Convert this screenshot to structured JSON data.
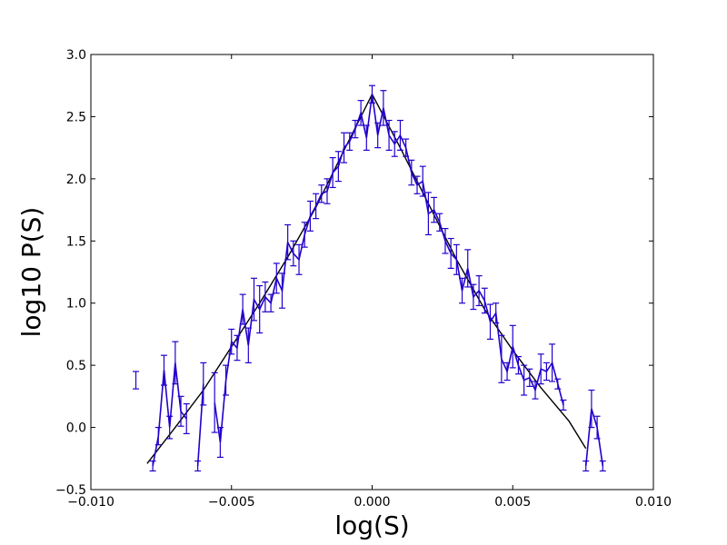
{
  "chart_data": {
    "type": "line",
    "title": "",
    "xlabel": "log(S)",
    "ylabel": "log10 P(S)",
    "xlim": [
      -0.01,
      0.01
    ],
    "ylim": [
      -0.5,
      3.0
    ],
    "x_ticks": [
      "−0.010",
      "−0.005",
      "0.000",
      "0.005",
      "0.010"
    ],
    "x_tick_values": [
      -0.01,
      -0.005,
      0.0,
      0.005,
      0.01
    ],
    "y_ticks": [
      "−0.5",
      "0.0",
      "0.5",
      "1.0",
      "1.5",
      "2.0",
      "2.5",
      "3.0"
    ],
    "y_tick_values": [
      -0.5,
      0.0,
      0.5,
      1.0,
      1.5,
      2.0,
      2.5,
      3.0
    ],
    "grid": false,
    "legend": "none",
    "colors": {
      "data": "#2200cc",
      "fit": "#000000"
    },
    "series": [
      {
        "style": "errorbar",
        "points": [
          {
            "x": -0.0084,
            "y": 0.38,
            "err": 0.07
          },
          {
            "x": -0.0078,
            "y": -0.31,
            "err": 0.04
          },
          {
            "x": -0.0076,
            "y": -0.07,
            "err": 0.07
          },
          {
            "x": -0.0074,
            "y": 0.46,
            "err": 0.12
          },
          {
            "x": -0.0072,
            "y": 0.0,
            "err": 0.09
          },
          {
            "x": -0.007,
            "y": 0.52,
            "err": 0.17
          },
          {
            "x": -0.0068,
            "y": 0.13,
            "err": 0.12
          },
          {
            "x": -0.0066,
            "y": 0.07,
            "err": 0.12
          },
          {
            "x": -0.0062,
            "y": -0.31,
            "err": 0.04
          },
          {
            "x": -0.006,
            "y": 0.35,
            "err": 0.17
          },
          {
            "x": -0.0056,
            "y": 0.2,
            "err": 0.24
          },
          {
            "x": -0.0054,
            "y": -0.12,
            "err": 0.12
          },
          {
            "x": -0.0052,
            "y": 0.38,
            "err": 0.12
          },
          {
            "x": -0.005,
            "y": 0.69,
            "err": 0.1
          },
          {
            "x": -0.0048,
            "y": 0.64,
            "err": 0.1
          },
          {
            "x": -0.0046,
            "y": 0.95,
            "err": 0.12
          },
          {
            "x": -0.0044,
            "y": 0.66,
            "err": 0.14
          },
          {
            "x": -0.0042,
            "y": 1.03,
            "err": 0.17
          },
          {
            "x": -0.004,
            "y": 0.95,
            "err": 0.19
          },
          {
            "x": -0.0038,
            "y": 1.05,
            "err": 0.12
          },
          {
            "x": -0.0036,
            "y": 1.0,
            "err": 0.07
          },
          {
            "x": -0.0034,
            "y": 1.2,
            "err": 0.12
          },
          {
            "x": -0.0032,
            "y": 1.1,
            "err": 0.14
          },
          {
            "x": -0.003,
            "y": 1.49,
            "err": 0.14
          },
          {
            "x": -0.0028,
            "y": 1.4,
            "err": 0.1
          },
          {
            "x": -0.0026,
            "y": 1.35,
            "err": 0.12
          },
          {
            "x": -0.0024,
            "y": 1.55,
            "err": 0.1
          },
          {
            "x": -0.0022,
            "y": 1.7,
            "err": 0.12
          },
          {
            "x": -0.002,
            "y": 1.78,
            "err": 0.1
          },
          {
            "x": -0.0018,
            "y": 1.88,
            "err": 0.07
          },
          {
            "x": -0.0016,
            "y": 1.9,
            "err": 0.1
          },
          {
            "x": -0.0014,
            "y": 2.05,
            "err": 0.12
          },
          {
            "x": -0.0012,
            "y": 2.1,
            "err": 0.12
          },
          {
            "x": -0.001,
            "y": 2.25,
            "err": 0.12
          },
          {
            "x": -0.0008,
            "y": 2.3,
            "err": 0.07
          },
          {
            "x": -0.0006,
            "y": 2.4,
            "err": 0.07
          },
          {
            "x": -0.0004,
            "y": 2.53,
            "err": 0.1
          },
          {
            "x": -0.0002,
            "y": 2.33,
            "err": 0.1
          },
          {
            "x": 0.0,
            "y": 2.68,
            "err": 0.07
          },
          {
            "x": 0.0002,
            "y": 2.35,
            "err": 0.1
          },
          {
            "x": 0.0004,
            "y": 2.57,
            "err": 0.14
          },
          {
            "x": 0.0006,
            "y": 2.35,
            "err": 0.12
          },
          {
            "x": 0.0008,
            "y": 2.28,
            "err": 0.1
          },
          {
            "x": 0.001,
            "y": 2.35,
            "err": 0.12
          },
          {
            "x": 0.0012,
            "y": 2.25,
            "err": 0.07
          },
          {
            "x": 0.0014,
            "y": 2.05,
            "err": 0.1
          },
          {
            "x": 0.0016,
            "y": 1.95,
            "err": 0.07
          },
          {
            "x": 0.0018,
            "y": 1.98,
            "err": 0.12
          },
          {
            "x": 0.002,
            "y": 1.72,
            "err": 0.17
          },
          {
            "x": 0.0022,
            "y": 1.75,
            "err": 0.1
          },
          {
            "x": 0.0024,
            "y": 1.65,
            "err": 0.07
          },
          {
            "x": 0.0026,
            "y": 1.5,
            "err": 0.1
          },
          {
            "x": 0.0028,
            "y": 1.4,
            "err": 0.12
          },
          {
            "x": 0.003,
            "y": 1.35,
            "err": 0.12
          },
          {
            "x": 0.0032,
            "y": 1.1,
            "err": 0.1
          },
          {
            "x": 0.0034,
            "y": 1.28,
            "err": 0.15
          },
          {
            "x": 0.0036,
            "y": 1.05,
            "err": 0.1
          },
          {
            "x": 0.0038,
            "y": 1.1,
            "err": 0.12
          },
          {
            "x": 0.004,
            "y": 1.02,
            "err": 0.1
          },
          {
            "x": 0.0042,
            "y": 0.85,
            "err": 0.14
          },
          {
            "x": 0.0044,
            "y": 0.92,
            "err": 0.08
          },
          {
            "x": 0.0046,
            "y": 0.55,
            "err": 0.19
          },
          {
            "x": 0.0048,
            "y": 0.45,
            "err": 0.07
          },
          {
            "x": 0.005,
            "y": 0.65,
            "err": 0.17
          },
          {
            "x": 0.0052,
            "y": 0.5,
            "err": 0.07
          },
          {
            "x": 0.0054,
            "y": 0.38,
            "err": 0.12
          },
          {
            "x": 0.0056,
            "y": 0.4,
            "err": 0.07
          },
          {
            "x": 0.0058,
            "y": 0.3,
            "err": 0.07
          },
          {
            "x": 0.006,
            "y": 0.47,
            "err": 0.12
          },
          {
            "x": 0.0062,
            "y": 0.45,
            "err": 0.07
          },
          {
            "x": 0.0064,
            "y": 0.52,
            "err": 0.15
          },
          {
            "x": 0.0066,
            "y": 0.35,
            "err": 0.04
          },
          {
            "x": 0.0068,
            "y": 0.18,
            "err": 0.04
          },
          {
            "x": 0.0076,
            "y": -0.31,
            "err": 0.04
          },
          {
            "x": 0.0078,
            "y": 0.15,
            "err": 0.15
          },
          {
            "x": 0.008,
            "y": 0.0,
            "err": 0.09
          },
          {
            "x": 0.0082,
            "y": -0.31,
            "err": 0.04
          }
        ]
      },
      {
        "style": "line",
        "points": [
          {
            "x": -0.008,
            "y": -0.29
          },
          {
            "x": -0.007,
            "y": 0.0
          },
          {
            "x": -0.006,
            "y": 0.3
          },
          {
            "x": -0.005,
            "y": 0.65
          },
          {
            "x": -0.004,
            "y": 1.0
          },
          {
            "x": -0.003,
            "y": 1.37
          },
          {
            "x": -0.002,
            "y": 1.77
          },
          {
            "x": -0.001,
            "y": 2.23
          },
          {
            "x": 0.0,
            "y": 2.68
          },
          {
            "x": 0.001,
            "y": 2.25
          },
          {
            "x": 0.002,
            "y": 1.8
          },
          {
            "x": 0.003,
            "y": 1.35
          },
          {
            "x": 0.004,
            "y": 0.95
          },
          {
            "x": 0.005,
            "y": 0.62
          },
          {
            "x": 0.006,
            "y": 0.32
          },
          {
            "x": 0.007,
            "y": 0.05
          },
          {
            "x": 0.0076,
            "y": -0.17
          }
        ]
      }
    ]
  }
}
